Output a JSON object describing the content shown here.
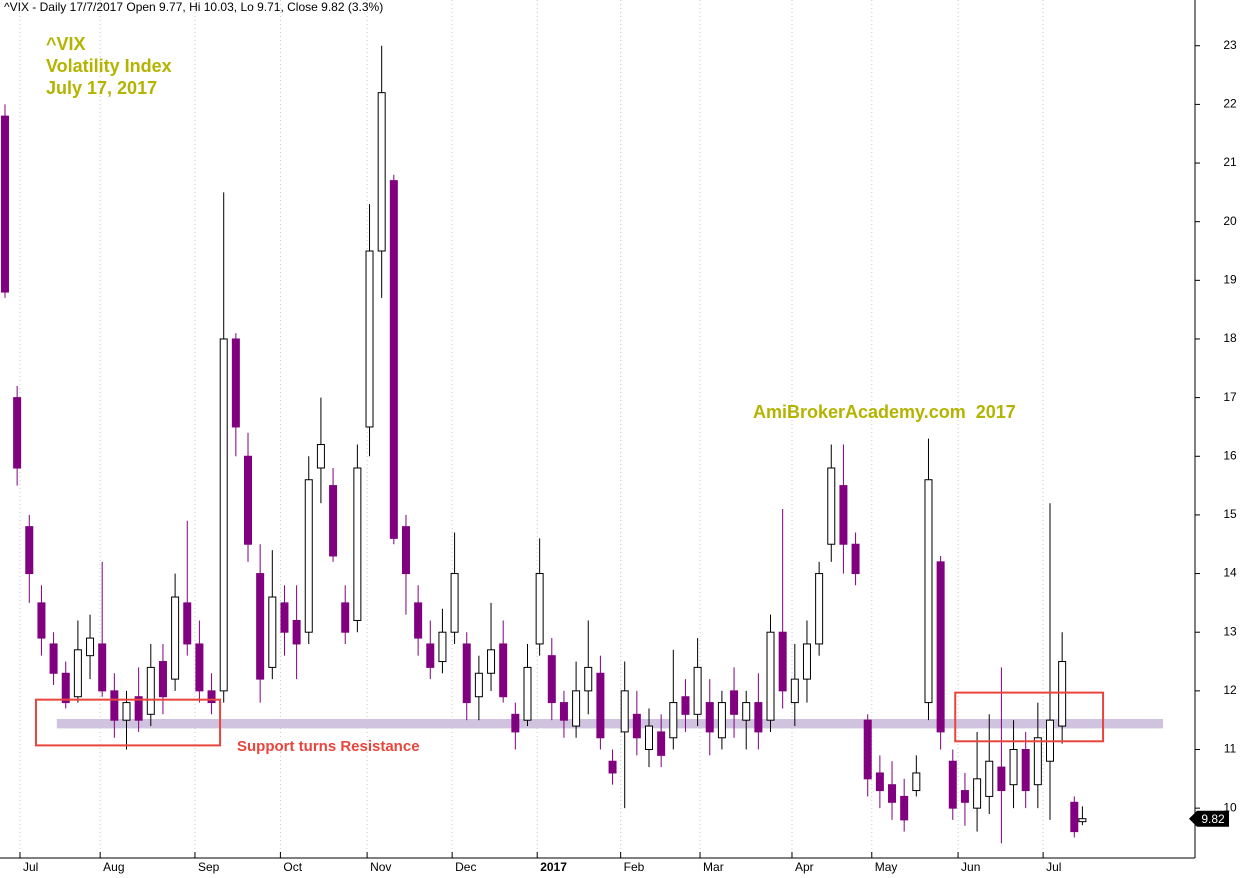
{
  "chart_data": {
    "type": "candlestick",
    "header": "^VIX - Daily 17/7/2017 Open 9.77, Hi 10.03, Lo 9.71, Close 9.82 (3.3%)",
    "annotations": [
      "^VIX",
      "Volatility Index",
      "July 17, 2017"
    ],
    "watermark": "AmiBrokerAcademy.com  2017",
    "box_note": "Support turns Resistance",
    "up_color": "#ffffff",
    "down_color": "#800080",
    "band_color": "#cfc3e0",
    "box_color": "#e8453c",
    "grid": true,
    "xlim": [
      -1.23,
      293.8
    ],
    "xticks": [
      {
        "value": 3.7,
        "label": "Jul"
      },
      {
        "value": 23.5,
        "label": "Aug"
      },
      {
        "value": 46.9,
        "label": "Sep"
      },
      {
        "value": 68,
        "label": "Oct"
      },
      {
        "value": 89.4,
        "label": "Nov"
      },
      {
        "value": 110.4,
        "label": "Dec"
      },
      {
        "value": 131.4,
        "label": "2017",
        "bold": true
      },
      {
        "value": 152,
        "label": "Feb"
      },
      {
        "value": 171.6,
        "label": "Mar"
      },
      {
        "value": 194.3,
        "label": "Apr"
      },
      {
        "value": 214,
        "label": "May"
      },
      {
        "value": 235.3,
        "label": "Jun"
      },
      {
        "value": 256.3,
        "label": "Jul"
      }
    ],
    "ylim": [
      9.15,
      23.78
    ],
    "yticks": [
      10,
      11,
      12,
      13,
      14,
      15,
      16,
      17,
      18,
      19,
      20,
      21,
      22,
      23
    ],
    "support_band": {
      "x": [
        12.8,
        285.9
      ],
      "y": [
        11.36,
        11.52
      ]
    },
    "boxes": [
      {
        "x": [
          7.65,
          53.1
        ],
        "y": [
          11.07,
          11.85
        ]
      },
      {
        "x": [
          234.6,
          271.1
        ],
        "y": [
          11.14,
          11.97
        ]
      }
    ],
    "x": [
      0,
      3,
      6,
      9,
      12,
      15,
      18,
      21,
      24,
      27,
      30,
      33,
      36,
      39,
      42,
      45,
      48,
      51,
      54,
      57,
      60,
      63,
      66,
      69,
      72,
      75,
      78,
      81,
      84,
      87,
      90,
      93,
      96,
      99,
      102,
      105,
      108,
      111,
      114,
      117,
      120,
      123,
      126,
      129,
      132,
      135,
      138,
      141,
      144,
      147,
      150,
      153,
      156,
      159,
      162,
      165,
      168,
      171,
      174,
      177,
      180,
      183,
      186,
      189,
      192,
      195,
      198,
      201,
      204,
      207,
      210,
      213,
      216,
      219,
      222,
      225,
      228,
      231,
      234,
      237,
      240,
      243,
      246,
      249,
      252,
      255,
      258,
      261,
      264,
      266
    ],
    "open": [
      21.8,
      17.0,
      14.8,
      13.5,
      12.8,
      12.3,
      11.9,
      12.6,
      12.8,
      12.0,
      11.5,
      11.9,
      11.6,
      12.5,
      12.2,
      13.5,
      12.8,
      12.0,
      12.0,
      18.0,
      16.0,
      14.0,
      12.4,
      13.5,
      13.2,
      13.0,
      15.8,
      15.5,
      13.5,
      13.2,
      16.5,
      19.5,
      20.7,
      14.8,
      13.5,
      12.8,
      12.5,
      13.0,
      12.8,
      11.9,
      12.3,
      12.8,
      11.6,
      11.5,
      12.8,
      12.6,
      11.8,
      11.4,
      12.0,
      12.3,
      10.8,
      11.3,
      11.6,
      11.0,
      11.3,
      11.2,
      11.9,
      11.6,
      11.8,
      11.2,
      12.0,
      11.5,
      11.8,
      11.5,
      13.0,
      11.8,
      12.2,
      12.8,
      14.5,
      15.5,
      14.5,
      11.5,
      10.6,
      10.4,
      10.2,
      10.3,
      11.8,
      14.2,
      10.8,
      10.3,
      10.0,
      10.2,
      10.7,
      10.4,
      11.0,
      10.4,
      10.8,
      11.4,
      10.1,
      9.77
    ],
    "high": [
      22.0,
      17.2,
      15.0,
      13.8,
      13.0,
      12.5,
      13.2,
      13.3,
      14.2,
      12.3,
      12.0,
      12.4,
      12.8,
      12.8,
      14.0,
      14.9,
      13.2,
      12.3,
      20.5,
      18.1,
      16.4,
      14.5,
      14.4,
      13.8,
      13.8,
      16.0,
      17.0,
      15.8,
      13.8,
      16.2,
      20.3,
      23.0,
      20.8,
      15.0,
      13.8,
      13.2,
      13.4,
      14.7,
      13.0,
      12.6,
      13.5,
      13.2,
      11.8,
      12.8,
      14.6,
      12.9,
      12.0,
      12.5,
      13.2,
      12.6,
      11.0,
      12.5,
      12.0,
      11.7,
      11.6,
      12.7,
      12.2,
      12.9,
      12.2,
      12.0,
      12.4,
      12.0,
      12.3,
      13.3,
      15.1,
      12.8,
      13.2,
      14.2,
      16.2,
      16.2,
      14.7,
      11.6,
      10.9,
      10.8,
      10.5,
      10.9,
      16.3,
      14.3,
      11.0,
      10.6,
      11.3,
      11.6,
      12.4,
      11.5,
      11.3,
      11.8,
      15.2,
      13.0,
      10.2,
      10.03
    ],
    "low": [
      18.7,
      15.5,
      13.5,
      12.6,
      12.1,
      11.7,
      11.8,
      12.2,
      11.9,
      11.2,
      11.0,
      11.3,
      11.4,
      11.6,
      12.0,
      12.6,
      11.8,
      11.6,
      11.8,
      16.0,
      14.2,
      11.8,
      12.2,
      12.6,
      12.2,
      12.8,
      15.2,
      14.2,
      12.8,
      13.0,
      16.0,
      18.7,
      14.5,
      13.3,
      12.6,
      12.2,
      12.3,
      12.8,
      11.5,
      11.5,
      12.0,
      11.8,
      11.0,
      11.4,
      12.6,
      11.5,
      11.2,
      11.2,
      11.6,
      11.0,
      10.4,
      10.0,
      10.9,
      10.7,
      10.7,
      11.0,
      11.3,
      11.4,
      10.9,
      11.0,
      11.2,
      11.0,
      11.0,
      11.3,
      11.7,
      11.4,
      11.8,
      12.6,
      14.2,
      14.0,
      13.8,
      10.2,
      10.0,
      9.8,
      9.6,
      10.2,
      11.5,
      11.0,
      9.8,
      9.7,
      9.6,
      9.9,
      9.4,
      10.0,
      10.0,
      10.0,
      9.8,
      11.1,
      9.5,
      9.71
    ],
    "close": [
      18.8,
      15.8,
      14.0,
      12.9,
      12.3,
      11.8,
      12.7,
      12.9,
      12.0,
      11.5,
      11.8,
      11.5,
      12.4,
      11.9,
      13.6,
      12.8,
      12.0,
      11.8,
      18.0,
      16.5,
      14.5,
      12.2,
      13.6,
      13.0,
      12.8,
      15.6,
      16.2,
      14.3,
      13.0,
      15.8,
      19.5,
      22.2,
      14.6,
      14.0,
      12.9,
      12.4,
      13.0,
      14.0,
      11.8,
      12.3,
      12.7,
      11.9,
      11.3,
      12.4,
      14.0,
      11.8,
      11.5,
      12.0,
      12.4,
      11.2,
      10.6,
      12.0,
      11.2,
      11.4,
      10.9,
      11.8,
      11.6,
      12.4,
      11.3,
      11.8,
      11.6,
      11.8,
      11.3,
      13.0,
      12.0,
      12.2,
      12.8,
      14.0,
      15.8,
      14.5,
      14.0,
      10.5,
      10.3,
      10.1,
      9.8,
      10.6,
      15.6,
      11.3,
      10.0,
      10.1,
      10.5,
      10.8,
      10.3,
      11.0,
      10.3,
      11.2,
      11.5,
      12.5,
      9.6,
      9.82
    ]
  }
}
